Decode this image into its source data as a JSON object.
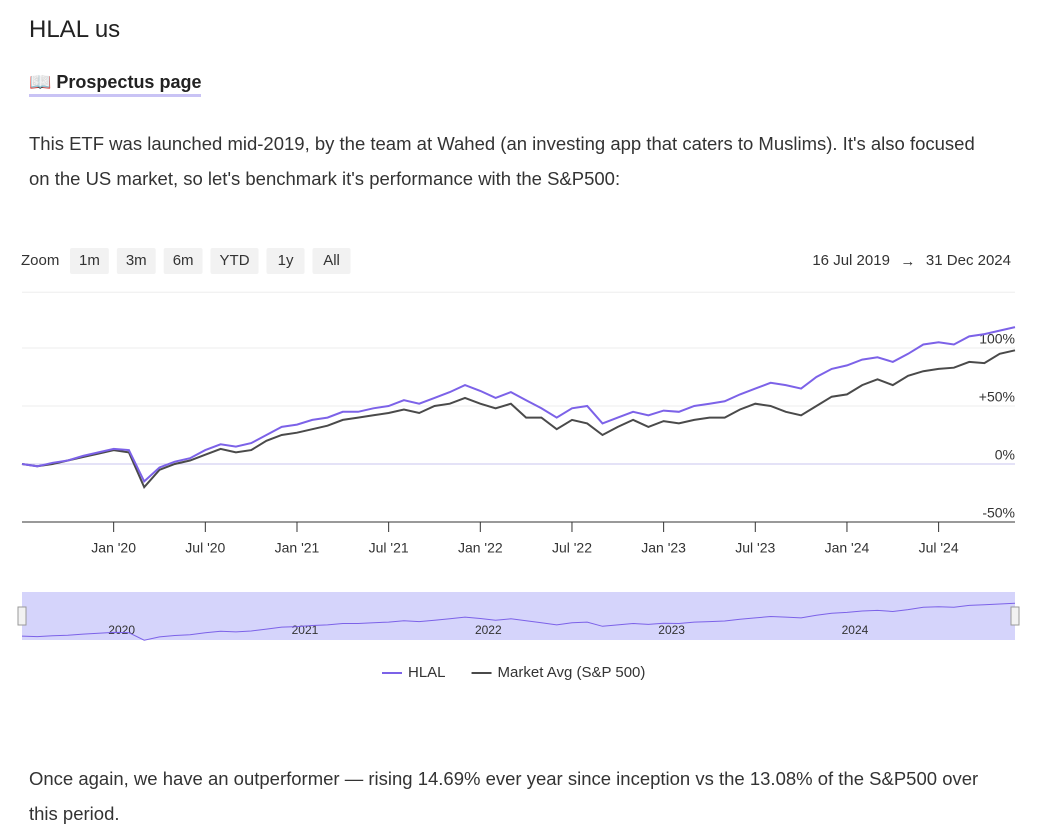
{
  "header": {
    "title": "HLAL us",
    "link": "📖 Prospectus page"
  },
  "intro": "This ETF was launched mid-2019, by the team at Wahed (an investing app that caters to Muslims). It's also focused on the US market, so let's benchmark it's performance with the S&P500:",
  "outro": "Once again, we have an outperformer — rising 14.69% ever year since inception vs the 13.08% of the S&P500 over this period.",
  "chart_data": {
    "type": "line",
    "zoom_label": "Zoom",
    "zoom_buttons": [
      "1m",
      "3m",
      "6m",
      "YTD",
      "1y",
      "All"
    ],
    "range_from": "16 Jul 2019",
    "range_arrow": "→",
    "range_to": "31 Dec 2024",
    "categories": [
      null,
      null,
      null,
      null,
      null,
      null,
      "Jan '20",
      null,
      null,
      null,
      null,
      null,
      "Jul '20",
      null,
      null,
      null,
      null,
      null,
      "Jan '21",
      null,
      null,
      null,
      null,
      null,
      "Jul '21",
      null,
      null,
      null,
      null,
      null,
      "Jan '22",
      null,
      null,
      null,
      null,
      null,
      "Jul '22",
      null,
      null,
      null,
      null,
      null,
      "Jan '23",
      null,
      null,
      null,
      null,
      null,
      "Jul '23",
      null,
      null,
      null,
      null,
      null,
      "Jan '24",
      null,
      null,
      null,
      null,
      null,
      "Jul '24",
      null,
      null,
      null,
      null,
      null
    ],
    "series": [
      {
        "name": "HLAL",
        "color": "#7c62e8",
        "values": [
          0,
          -2,
          1,
          3,
          7,
          10,
          13,
          12,
          -15,
          -3,
          2,
          5,
          12,
          17,
          15,
          18,
          25,
          32,
          34,
          38,
          40,
          45,
          45,
          48,
          50,
          55,
          52,
          57,
          62,
          68,
          63,
          57,
          62,
          55,
          48,
          40,
          48,
          50,
          35,
          40,
          45,
          42,
          46,
          45,
          50,
          52,
          54,
          60,
          65,
          70,
          68,
          65,
          75,
          82,
          85,
          90,
          92,
          88,
          95,
          103,
          105,
          103,
          110,
          112,
          115,
          118
        ]
      },
      {
        "name": "Market Avg (S&P 500)",
        "color": "#4a4a4a",
        "values": [
          0,
          -2,
          0,
          3,
          6,
          9,
          12,
          10,
          -20,
          -5,
          0,
          3,
          8,
          13,
          10,
          12,
          20,
          25,
          27,
          30,
          33,
          38,
          40,
          42,
          44,
          47,
          44,
          50,
          52,
          57,
          52,
          48,
          52,
          40,
          40,
          30,
          38,
          35,
          25,
          32,
          38,
          32,
          37,
          35,
          38,
          40,
          40,
          47,
          52,
          50,
          45,
          42,
          50,
          58,
          60,
          68,
          73,
          68,
          76,
          80,
          82,
          83,
          88,
          87,
          95,
          98
        ]
      }
    ],
    "ylim": [
      -50,
      148
    ],
    "yticks": [
      {
        "value": -50,
        "label": "-50%"
      },
      {
        "value": 0,
        "label": "0%"
      },
      {
        "value": 50,
        "label": "+50%"
      },
      {
        "value": 100,
        "label": "100%"
      }
    ],
    "grid": true,
    "tick_color": "#7c62e8",
    "navigator_labels": [
      "2020",
      "2021",
      "2022",
      "2023",
      "2024"
    ],
    "legend": "bottom"
  }
}
